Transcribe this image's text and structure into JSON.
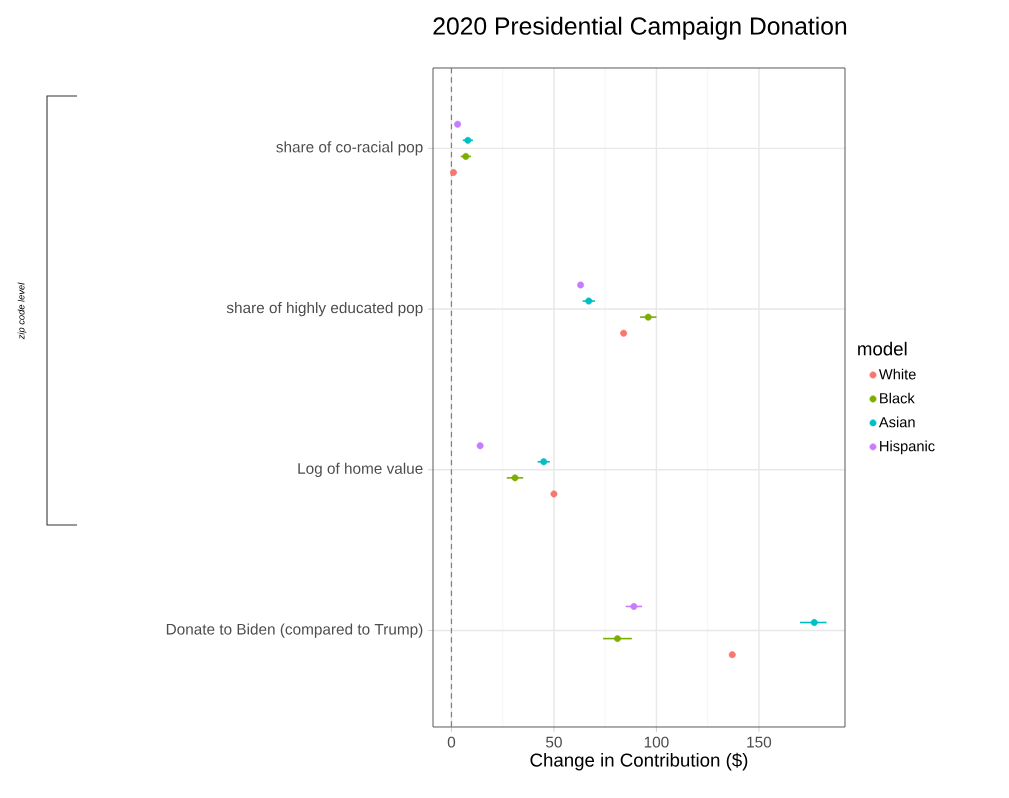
{
  "chart_data": {
    "type": "scatter",
    "orientation": "horizontal",
    "title": "2020 Presidential Campaign Donation",
    "xlabel": "Change in Contribution ($)",
    "legend_title": "model",
    "categories": [
      "share of co-racial pop",
      "share of highly educated pop",
      "Log of home value",
      "Donate to Biden (compared to Trump)"
    ],
    "series": [
      {
        "name": "White",
        "color": "#f8766d",
        "values": [
          1,
          84,
          50,
          137
        ],
        "errors": [
          null,
          null,
          null,
          null
        ]
      },
      {
        "name": "Black",
        "color": "#7cae00",
        "values": [
          7,
          96,
          31,
          81
        ],
        "errors": [
          2.5,
          4,
          4,
          [
            74,
            88
          ]
        ]
      },
      {
        "name": "Asian",
        "color": "#00bfc4",
        "values": [
          8,
          67,
          45,
          177
        ],
        "errors": [
          2.5,
          3,
          3,
          [
            170,
            183
          ]
        ]
      },
      {
        "name": "Hispanic",
        "color": "#c77cff",
        "values": [
          3,
          63,
          14,
          89
        ],
        "errors": [
          null,
          null,
          null,
          [
            85,
            93
          ]
        ]
      }
    ],
    "xlim": [
      -9,
      192
    ],
    "xticks": [
      0,
      50,
      100,
      150
    ],
    "grid": true,
    "legend": "right",
    "ref_lines": [
      {
        "axis": "x",
        "value": 0,
        "color": "#7f7f7f",
        "line_style": "dashed"
      }
    ],
    "annotations": [
      "zip code level"
    ]
  }
}
